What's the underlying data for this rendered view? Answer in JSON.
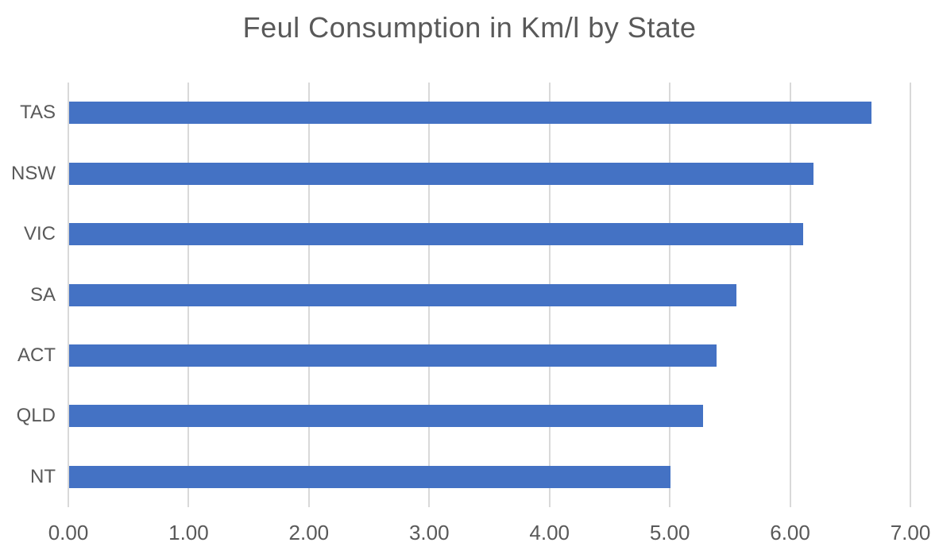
{
  "chart_data": {
    "type": "bar",
    "orientation": "horizontal",
    "title": "Feul Consumption in Km/l by State",
    "categories": [
      "TAS",
      "NSW",
      "VIC",
      "SA",
      "ACT",
      "QLD",
      "NT"
    ],
    "values": [
      6.67,
      6.19,
      6.1,
      5.55,
      5.38,
      5.27,
      5.0
    ],
    "xlabel": "",
    "ylabel": "",
    "xlim": [
      0,
      7
    ],
    "x_ticks": [
      0,
      1,
      2,
      3,
      4,
      5,
      6,
      7
    ],
    "x_tick_labels": [
      "0.00",
      "1.00",
      "2.00",
      "3.00",
      "4.00",
      "5.00",
      "6.00",
      "7.00"
    ],
    "grid": "vertical-only",
    "legend": "none",
    "colors": {
      "bar": "#4472C4",
      "gridline": "#D9D9D9",
      "axis_line": "#D9D9D9",
      "text": "#595959",
      "background": "#FFFFFF"
    }
  }
}
